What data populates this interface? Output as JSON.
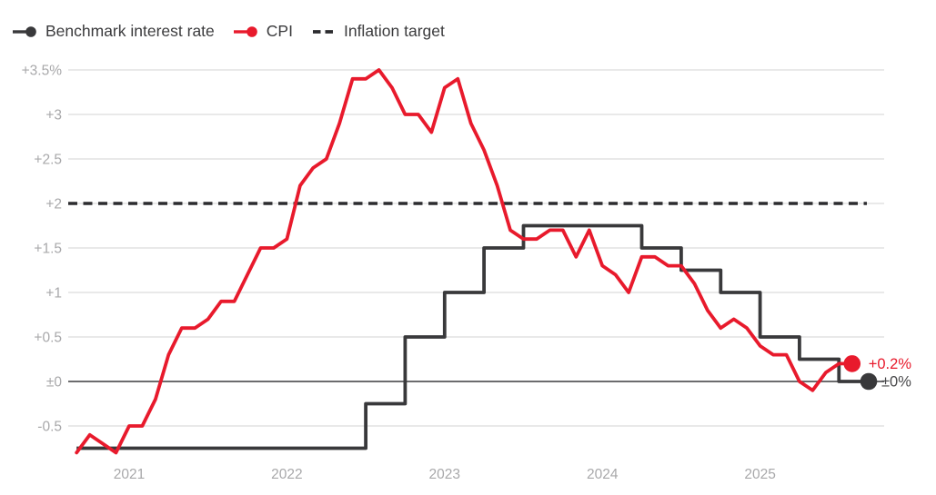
{
  "legend": [
    {
      "label": "Benchmark interest rate",
      "icon": "line-dot-marker",
      "color": "#39393b"
    },
    {
      "label": "CPI",
      "icon": "line-dot-marker",
      "color": "#e81a2c"
    },
    {
      "label": "Inflation target",
      "icon": "dashed-line-marker",
      "color": "#2c2c2f"
    }
  ],
  "colors": {
    "cpi": "#e81a2c",
    "benchmark": "#39393b",
    "target": "#2c2c2f",
    "gridline": "#dcdcdc",
    "zero_line": "#57575a",
    "tick_label": "#a8a8aa"
  },
  "chart_data": {
    "type": "line",
    "title": "",
    "xlabel": "",
    "ylabel": "",
    "grid": true,
    "legend_position": "top-left",
    "x_axis": {
      "tick_labels": [
        "2021",
        "2022",
        "2023",
        "2024",
        "2025"
      ],
      "tick_years": [
        2021,
        2022,
        2023,
        2024,
        2025
      ]
    },
    "y_axis": {
      "tick_labels": [
        "+3.5%",
        "+3",
        "+2.5",
        "+2",
        "+1.5",
        "+1",
        "+0.5",
        "±0",
        "-0.5"
      ],
      "tick_values": [
        3.5,
        3,
        2.5,
        2,
        1.5,
        1,
        0.5,
        0,
        -0.5
      ],
      "ylim": [
        -0.85,
        3.6
      ]
    },
    "start_month": "2020-09",
    "end_month": "2025-08",
    "series": [
      {
        "name": "CPI",
        "color": "#e81a2c",
        "start_month": "2020-09",
        "values": [
          -0.8,
          -0.6,
          -0.7,
          -0.8,
          -0.5,
          -0.5,
          -0.2,
          0.3,
          0.6,
          0.6,
          0.7,
          0.9,
          0.9,
          1.2,
          1.5,
          1.5,
          1.6,
          2.2,
          2.4,
          2.5,
          2.9,
          3.4,
          3.4,
          3.5,
          3.3,
          3.0,
          3.0,
          2.8,
          3.3,
          3.4,
          2.9,
          2.6,
          2.2,
          1.7,
          1.6,
          1.6,
          1.7,
          1.7,
          1.4,
          1.7,
          1.3,
          1.2,
          1.0,
          1.4,
          1.4,
          1.3,
          1.3,
          1.1,
          0.8,
          0.6,
          0.7,
          0.6,
          0.4,
          0.3,
          0.3,
          0.0,
          -0.1,
          0.1,
          0.2,
          0.2
        ]
      },
      {
        "name": "Benchmark interest rate",
        "color": "#39393b",
        "steps": [
          {
            "month": "2020-09",
            "rate": -0.75
          },
          {
            "month": "2022-07",
            "rate": -0.25
          },
          {
            "month": "2022-10",
            "rate": 0.5
          },
          {
            "month": "2023-01",
            "rate": 1.0
          },
          {
            "month": "2023-04",
            "rate": 1.5
          },
          {
            "month": "2023-07",
            "rate": 1.75
          },
          {
            "month": "2024-04",
            "rate": 1.5
          },
          {
            "month": "2024-07",
            "rate": 1.25
          },
          {
            "month": "2024-10",
            "rate": 1.0
          },
          {
            "month": "2025-01",
            "rate": 0.5
          },
          {
            "month": "2025-04",
            "rate": 0.25
          },
          {
            "month": "2025-07",
            "rate": 0.0
          }
        ]
      }
    ],
    "target_line": {
      "name": "Inflation target",
      "value": 2,
      "style": "dashed"
    },
    "annotations": [
      {
        "text": "+0.2%",
        "series": "CPI",
        "color": "#e81a2c"
      },
      {
        "text": "±0%",
        "series": "Benchmark interest rate",
        "color": "#48484a"
      }
    ]
  }
}
